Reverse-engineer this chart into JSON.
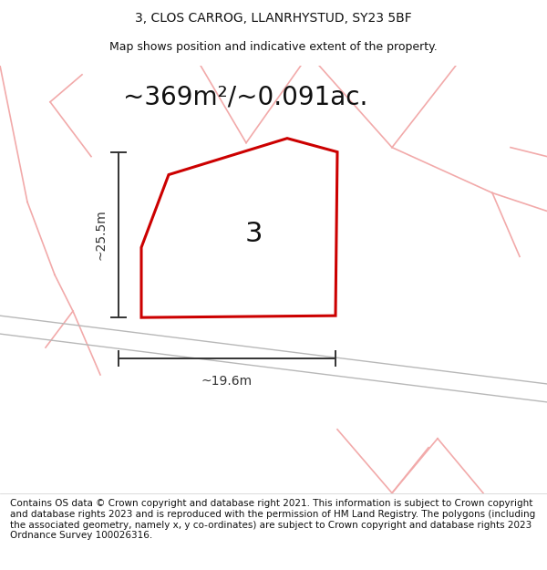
{
  "title_line1": "3, CLOS CARROG, LLANRHYSTUD, SY23 5BF",
  "title_line2": "Map shows position and indicative extent of the property.",
  "area_text": "~369m²/~0.091ac.",
  "dim_vertical": "~25.5m",
  "dim_horizontal": "~19.6m",
  "property_label": "3",
  "copyright_text": "Contains OS data © Crown copyright and database right 2021. This information is subject to Crown copyright and database rights 2023 and is reproduced with the permission of HM Land Registry. The polygons (including the associated geometry, namely x, y co-ordinates) are subject to Crown copyright and database rights 2023 Ordnance Survey 100026316.",
  "road_color": "#f2aaaa",
  "road_color2": "#e8a0a0",
  "gray_road_color": "#c8c8c8",
  "property_edge_color": "#cc0000",
  "property_fill": "#ffffff",
  "building_fill": "#e0e0e0",
  "dim_line_color": "#333333",
  "title_fontsize": 10,
  "subtitle_fontsize": 9,
  "area_fontsize": 20,
  "label_fontsize": 22,
  "dim_fontsize": 10,
  "copyright_fontsize": 7.5,
  "fig_width": 6.0,
  "fig_height": 6.25,
  "dpi": 100
}
